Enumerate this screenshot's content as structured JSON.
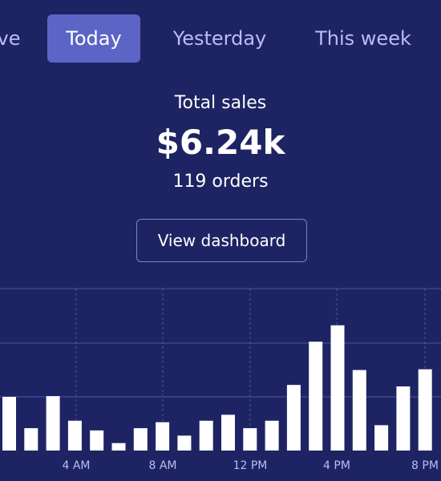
{
  "tabs": [
    {
      "label": "ve",
      "active": false
    },
    {
      "label": "Today",
      "active": true
    },
    {
      "label": "Yesterday",
      "active": false
    },
    {
      "label": "This week",
      "active": false
    }
  ],
  "summary": {
    "label": "Total sales",
    "value": "$6.24k",
    "orders": "119 orders"
  },
  "dashboard_button": "View dashboard",
  "colors": {
    "background": "#1e2463",
    "active_tab": "#5c65c6",
    "bar": "#ffffff",
    "gridline": "#6c73d4"
  },
  "chart_data": {
    "type": "bar",
    "x_tick_labels": [
      "4 AM",
      "8 AM",
      "12 PM",
      "4 PM",
      "8 PM"
    ],
    "values": [
      72,
      30,
      73,
      40,
      27,
      10,
      30,
      38,
      20,
      40,
      48,
      30,
      40,
      88,
      146,
      168,
      108,
      34,
      86,
      109
    ],
    "grid": true
  }
}
